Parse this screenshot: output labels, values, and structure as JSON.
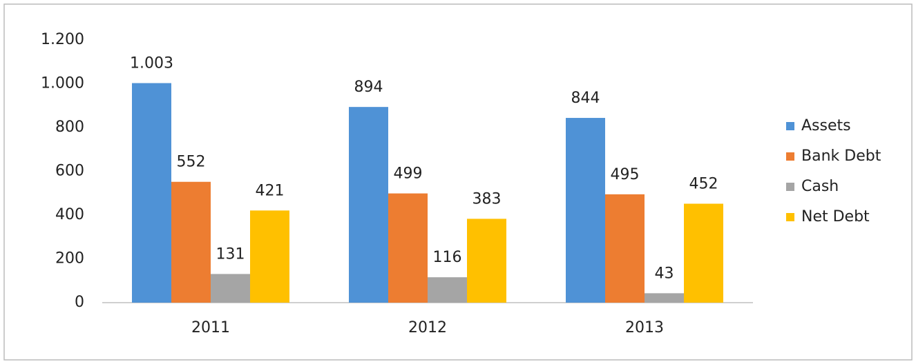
{
  "chart_data": {
    "type": "bar",
    "categories": [
      "2011",
      "2012",
      "2013"
    ],
    "series": [
      {
        "name": "Assets",
        "color": "#4f92d6",
        "values": [
          1003,
          894,
          844
        ],
        "value_labels": [
          "1.003",
          "894",
          "844"
        ]
      },
      {
        "name": "Bank Debt",
        "color": "#ed7d31",
        "values": [
          552,
          499,
          495
        ]
      },
      {
        "name": "Cash",
        "color": "#a5a5a5",
        "values": [
          131,
          116,
          43
        ]
      },
      {
        "name": "Net Debt",
        "color": "#ffc000",
        "values": [
          421,
          383,
          452
        ]
      }
    ],
    "ylim": [
      0,
      1200
    ],
    "yticks": [
      0,
      200,
      400,
      600,
      800,
      {
        "value": 1000,
        "label": "1.000"
      },
      {
        "value": 1200,
        "label": "1.200"
      }
    ],
    "grid": false,
    "legend": "right"
  }
}
